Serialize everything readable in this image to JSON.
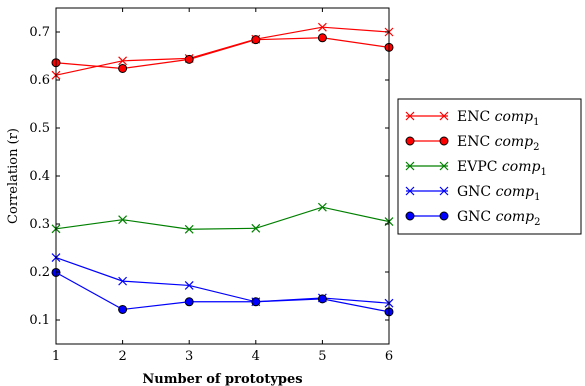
{
  "chart_data": {
    "type": "line",
    "x": [
      1,
      2,
      3,
      4,
      5,
      6
    ],
    "xlim": [
      1,
      6
    ],
    "ylim": [
      0.05,
      0.75
    ],
    "xticks": [
      "1",
      "2",
      "3",
      "4",
      "5",
      "6"
    ],
    "yticks": [
      "0.1",
      "0.2",
      "0.3",
      "0.4",
      "0.5",
      "0.6",
      "0.7"
    ],
    "xlabel": "Number of prototypes",
    "ylabel": "Correlation (r)",
    "grid": false,
    "legend_position": "right",
    "series": [
      {
        "name": "ENC comp1",
        "legend_main": "ENC",
        "legend_italic": "comp",
        "legend_sub": "1",
        "color": "#ff0000",
        "marker": "x",
        "values": [
          0.61,
          0.64,
          0.645,
          0.685,
          0.71,
          0.7
        ]
      },
      {
        "name": "ENC comp2",
        "legend_main": "ENC",
        "legend_italic": "comp",
        "legend_sub": "2",
        "color": "#ff0000",
        "marker": "o",
        "values": [
          0.636,
          0.624,
          0.643,
          0.684,
          0.688,
          0.668
        ]
      },
      {
        "name": "EVPC comp1",
        "legend_main": "EVPC",
        "legend_italic": "comp",
        "legend_sub": "1",
        "color": "#008000",
        "marker": "x",
        "values": [
          0.29,
          0.309,
          0.289,
          0.291,
          0.335,
          0.305
        ]
      },
      {
        "name": "GNC comp1",
        "legend_main": "GNC",
        "legend_italic": "comp",
        "legend_sub": "1",
        "color": "#0000ff",
        "marker": "x",
        "values": [
          0.23,
          0.181,
          0.172,
          0.138,
          0.146,
          0.135
        ]
      },
      {
        "name": "GNC comp2",
        "legend_main": "GNC",
        "legend_italic": "comp",
        "legend_sub": "2",
        "color": "#0000ff",
        "marker": "o",
        "values": [
          0.199,
          0.122,
          0.138,
          0.138,
          0.144,
          0.117
        ]
      }
    ]
  }
}
